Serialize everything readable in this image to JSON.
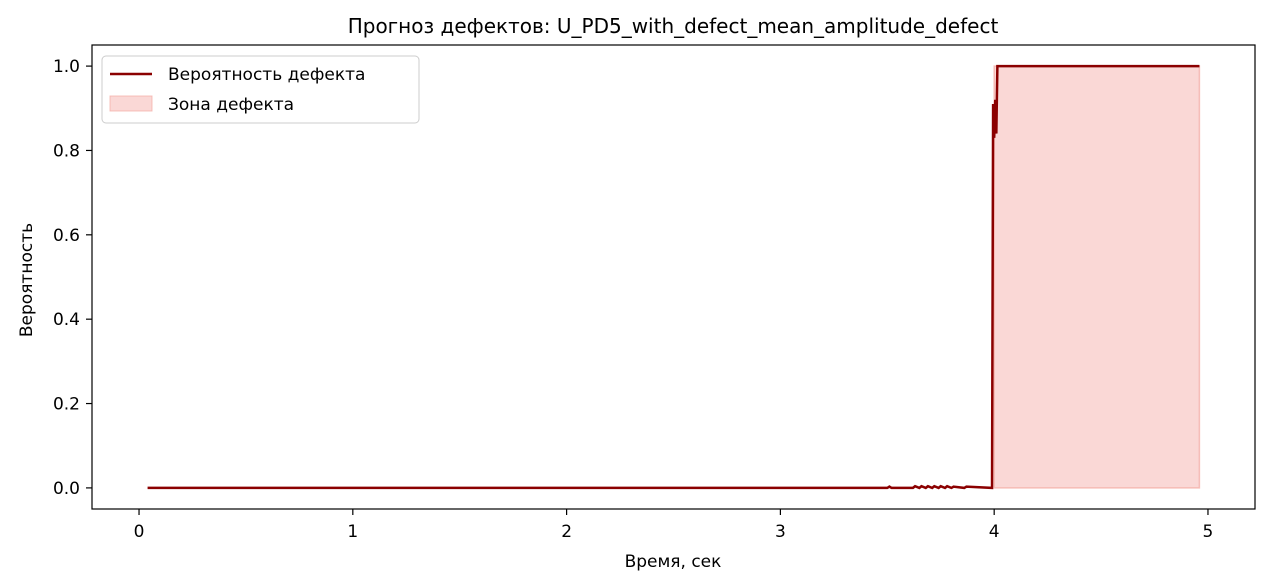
{
  "chart_data": {
    "type": "line",
    "title": "Прогноз дефектов: U_PD5_with_defect_mean_amplitude_defect",
    "xlabel": "Время, сек",
    "ylabel": "Вероятность",
    "xlim": [
      -0.22,
      5.22
    ],
    "ylim": [
      -0.05,
      1.05
    ],
    "x_ticks": [
      0,
      1,
      2,
      3,
      4,
      5
    ],
    "y_ticks": [
      0.0,
      0.2,
      0.4,
      0.6,
      0.8,
      1.0
    ],
    "x_tick_labels": [
      "0",
      "1",
      "2",
      "3",
      "4",
      "5"
    ],
    "y_tick_labels": [
      "0.0",
      "0.2",
      "0.4",
      "0.6",
      "0.8",
      "1.0"
    ],
    "grid": false,
    "legend_position": "top-left",
    "series": [
      {
        "name": "Вероятность дефекта",
        "color": "#8b0000",
        "x": [
          0.04,
          3.5,
          3.51,
          3.52,
          3.62,
          3.63,
          3.65,
          3.66,
          3.68,
          3.69,
          3.71,
          3.72,
          3.74,
          3.75,
          3.77,
          3.78,
          3.8,
          3.81,
          3.86,
          3.87,
          3.99,
          3.995,
          4.0,
          4.005,
          4.01,
          4.015,
          4.96
        ],
        "y": [
          0.0,
          0.0,
          0.003,
          0.0,
          0.0,
          0.004,
          0.0,
          0.004,
          0.0,
          0.004,
          0.0,
          0.004,
          0.0,
          0.004,
          0.0,
          0.004,
          0.0,
          0.003,
          0.0,
          0.003,
          0.0,
          0.91,
          0.83,
          0.92,
          0.84,
          1.0,
          1.0
        ]
      }
    ],
    "defect_zone": {
      "name": "Зона дефекта",
      "color": "#f4a9a3",
      "x_start": 4.0,
      "x_end": 4.96,
      "y_bottom": 0.0,
      "y_top": 1.0
    }
  }
}
